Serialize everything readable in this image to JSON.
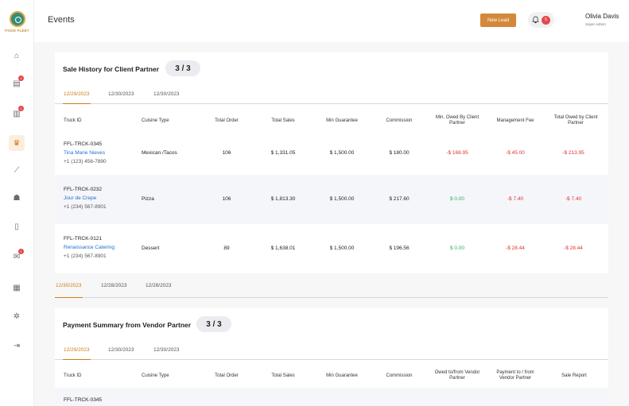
{
  "app": {
    "logo_text": "FOOD FLEET"
  },
  "sidebar": {
    "items": [
      {
        "name": "home",
        "glyph": "⌂",
        "badge": ""
      },
      {
        "name": "chart",
        "glyph": "▤",
        "badge": "1"
      },
      {
        "name": "document",
        "glyph": "▥",
        "badge": "1"
      },
      {
        "name": "trophy",
        "glyph": "♛",
        "badge": ""
      },
      {
        "name": "analytics",
        "glyph": "⟋",
        "badge": ""
      },
      {
        "name": "users",
        "glyph": "☗",
        "badge": ""
      },
      {
        "name": "file",
        "glyph": "▯",
        "badge": ""
      },
      {
        "name": "messages",
        "glyph": "✉",
        "badge": "1"
      },
      {
        "name": "reports",
        "glyph": "▦",
        "badge": ""
      },
      {
        "name": "settings",
        "glyph": "✲",
        "badge": ""
      },
      {
        "name": "logout",
        "glyph": "⇥",
        "badge": ""
      }
    ]
  },
  "header": {
    "title": "Events",
    "new_lead_label": "New Lead",
    "notification_count": "5",
    "user_name": "Olivia Davis",
    "user_role": "Super Admin"
  },
  "sale_history": {
    "title": "Sale History for Client Partner",
    "count": "3 / 3",
    "tabs": [
      "12/29/2023",
      "12/30/2023",
      "12/30/2023"
    ],
    "columns": [
      "Truck ID",
      "Cuisine Type",
      "Total Order",
      "Total Sales",
      "Min Guarantee",
      "Commission",
      "Min. Owed By Client Partner",
      "Management Fee",
      "Total Owed by Client Partner"
    ],
    "rows": [
      {
        "id": "FFL-TRCK-0345",
        "name": "Tina Marie Nieves",
        "phone": "+1 (123) 456-7890",
        "cuisine": "Mexican /Tacos",
        "orders": "106",
        "sales": "$ 1,331.05",
        "min_guarantee": "$ 1,500.00",
        "commission": "$ 180.00",
        "min_owed": "-$ 168.95",
        "mgmt_fee": "-$ 45.00",
        "total_owed": "-$ 213.95"
      },
      {
        "id": "FFL-TRCK-0232",
        "name": "Jour de Crepe",
        "phone": "+1 (234) 567-8901",
        "cuisine": "Pizza",
        "orders": "106",
        "sales": "$ 1,813.30",
        "min_guarantee": "$ 1,500.00",
        "commission": "$ 217.60",
        "min_owed": "$ 0.00",
        "mgmt_fee": "-$ 7.40",
        "total_owed": "-$ 7.40"
      },
      {
        "id": "FFL-TRCK-0121",
        "name": "Renaissance Catering",
        "phone": "+1 (234) 567-8901",
        "cuisine": "Dessert",
        "orders": "89",
        "sales": "$ 1,638.01",
        "min_guarantee": "$ 1,500.00",
        "commission": "$ 196.56",
        "min_owed": "$ 0.00",
        "mgmt_fee": "-$ 28.44",
        "total_owed": "-$ 28.44"
      }
    ]
  },
  "date_tabs": [
    "12/30/2023",
    "12/28/2023",
    "12/28/2023"
  ],
  "payment_summary": {
    "title": "Payment Summary from Vendor Partner",
    "count": "3 / 3",
    "tabs": [
      "12/29/2023",
      "12/30/2023",
      "12/30/2023"
    ],
    "columns": [
      "Truck ID",
      "Cuisine Type",
      "Total Order",
      "Total Sales",
      "Min Guarantee",
      "Commission",
      "Owed to/from Vendor Partner",
      "Payment to / from Vendor Partner",
      "Sale Report"
    ],
    "rows": [
      {
        "id": "FFL-TRCK-0345"
      }
    ]
  },
  "colors": {
    "accent": "#d4883a",
    "negative": "#e03131",
    "positive": "#2fae6b",
    "link": "#1f6fd1"
  }
}
